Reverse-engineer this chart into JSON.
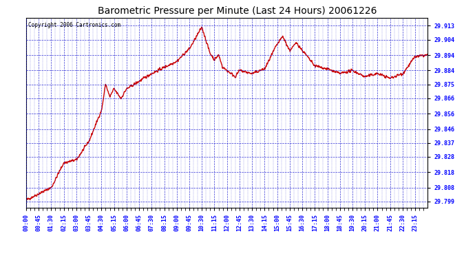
{
  "title": "Barometric Pressure per Minute (Last 24 Hours) 20061226",
  "copyright": "Copyright 2006 Cartronics.com",
  "background_color": "#FFFFFF",
  "plot_bg_color": "#FFFFFF",
  "grid_color": "#0000CC",
  "line_color": "#CC0000",
  "line_width": 1.0,
  "yticks": [
    29.799,
    29.808,
    29.818,
    29.828,
    29.837,
    29.846,
    29.856,
    29.866,
    29.875,
    29.884,
    29.894,
    29.904,
    29.913
  ],
  "ymin": 29.795,
  "ymax": 29.918,
  "xtick_labels": [
    "00:00",
    "00:45",
    "01:30",
    "02:15",
    "03:00",
    "03:45",
    "04:30",
    "05:15",
    "06:00",
    "06:45",
    "07:30",
    "08:15",
    "09:00",
    "09:45",
    "10:30",
    "11:15",
    "12:00",
    "12:45",
    "13:30",
    "14:15",
    "15:00",
    "15:45",
    "16:30",
    "17:15",
    "18:00",
    "18:45",
    "19:30",
    "20:15",
    "21:00",
    "21:45",
    "22:30",
    "23:15"
  ],
  "title_fontsize": 10,
  "tick_fontsize": 6,
  "copyright_fontsize": 5.5
}
